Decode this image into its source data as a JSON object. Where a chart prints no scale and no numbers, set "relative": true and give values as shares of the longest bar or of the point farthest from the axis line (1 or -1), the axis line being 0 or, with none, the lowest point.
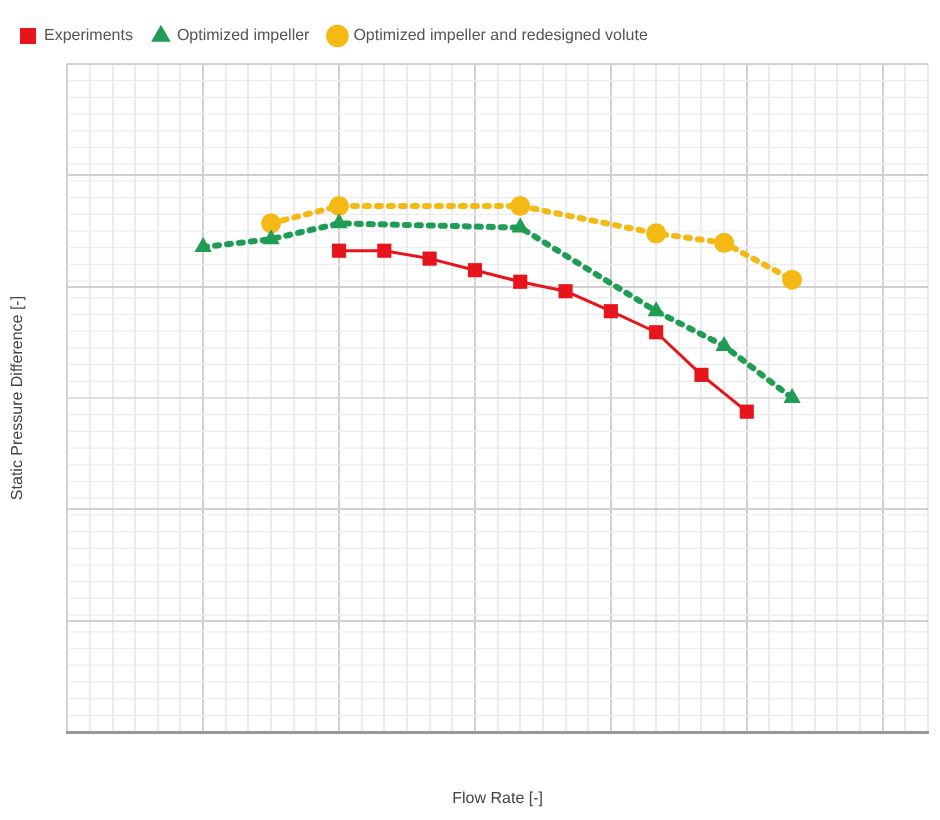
{
  "chart_data": {
    "type": "line",
    "relative": true,
    "xlabel": "Flow Rate [-]",
    "ylabel": "Static Pressure Difference [-]",
    "grid": true,
    "legend": "top",
    "categories": [
      null,
      null,
      null,
      null,
      null,
      null,
      null,
      null,
      null,
      null,
      null,
      null,
      null,
      null,
      null,
      null,
      null,
      null,
      null,
      null,
      null,
      null,
      null,
      null,
      null,
      null,
      null,
      null,
      null,
      null,
      null,
      null,
      null,
      null,
      null,
      null,
      null,
      null,
      null
    ],
    "series": [
      {
        "name": "Experiments",
        "color": "#e8141b",
        "marker": "square",
        "line_style": "solid",
        "values": [
          null,
          null,
          null,
          null,
          null,
          null,
          null,
          null,
          null,
          null,
          null,
          null,
          0.915,
          null,
          0.915,
          null,
          0.9,
          null,
          0.878,
          null,
          0.856,
          null,
          0.838,
          null,
          0.8,
          null,
          0.76,
          null,
          0.679,
          null,
          0.609,
          null,
          null,
          null,
          null,
          null,
          null,
          null,
          null
        ]
      },
      {
        "name": "Optimized impeller",
        "color": "#1f9d55",
        "marker": "triangle",
        "line_style": "dotted",
        "values": [
          null,
          null,
          null,
          null,
          null,
          null,
          0.922,
          null,
          null,
          0.937,
          null,
          null,
          0.967,
          null,
          null,
          null,
          null,
          null,
          null,
          null,
          0.959,
          null,
          null,
          null,
          null,
          null,
          0.8,
          null,
          null,
          0.734,
          null,
          null,
          0.635,
          null,
          null,
          null,
          null,
          null,
          null
        ]
      },
      {
        "name": "Optimized impeller and redesigned volute",
        "color": "#f5b916",
        "marker": "circle",
        "line_style": "dotted",
        "values": [
          null,
          null,
          null,
          null,
          null,
          null,
          null,
          null,
          null,
          0.967,
          null,
          null,
          1,
          null,
          null,
          null,
          null,
          null,
          null,
          null,
          1,
          null,
          null,
          null,
          null,
          null,
          0.948,
          null,
          null,
          0.93,
          null,
          null,
          0.86,
          null,
          null,
          null,
          null,
          null,
          null
        ]
      }
    ]
  }
}
